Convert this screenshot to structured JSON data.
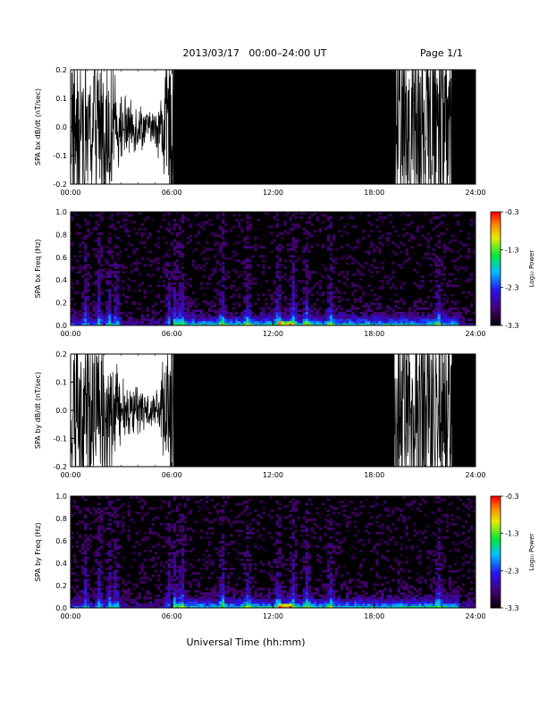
{
  "header": {
    "title": "2013/03/17   00:00–24:00 UT",
    "page": "Page 1/1"
  },
  "footer": {
    "xlabel": "Universal Time (hh:mm)"
  },
  "chart_data": [
    {
      "type": "line",
      "ylabel": "SPA bx dB/dt (nT/sec)",
      "xticks": [
        "00:00",
        "06:00",
        "12:00",
        "18:00",
        "24:00"
      ],
      "yticks": [
        "0.2",
        "0.1",
        "0.0",
        "-0.1",
        "-0.2"
      ],
      "ylim": [
        -0.2,
        0.2
      ],
      "xlim_hours": [
        0,
        24
      ],
      "series": [
        {
          "x_hours": [
            0,
            1,
            2,
            3,
            4,
            5,
            5.9,
            6.1,
            9,
            12,
            15,
            18,
            21,
            24
          ],
          "y_envelope": [
            0.2,
            0.2,
            0.2,
            0.08,
            0.06,
            0.04,
            0.2,
            0.2,
            0.2,
            0.2,
            0.2,
            0.2,
            0.2,
            0.2
          ]
        }
      ]
    },
    {
      "type": "heatmap",
      "ylabel": "SPA bx Freq (Hz)",
      "xticks": [
        "00:00",
        "06:00",
        "12:00",
        "18:00",
        "24:00"
      ],
      "yticks": [
        "1.0",
        "0.8",
        "0.6",
        "0.4",
        "0.2",
        "0.0"
      ],
      "ylim": [
        0,
        1.0
      ],
      "colorbar": {
        "label": "Log₁₀ Power",
        "ticks": [
          "-0.3",
          "-1.3",
          "-2.3",
          "-3.3"
        ],
        "range": [
          -3.3,
          -0.3
        ]
      },
      "enhancements_hours": [
        0.9,
        1.7,
        2.3,
        2.7,
        5.8,
        6.2,
        6.6,
        9.0,
        10.5,
        12.3,
        13.2,
        14.0,
        15.4,
        21.8
      ]
    },
    {
      "type": "line",
      "ylabel": "SPA by dB/dt (nT/sec)",
      "xticks": [
        "00:00",
        "06:00",
        "12:00",
        "18:00",
        "24:00"
      ],
      "yticks": [
        "0.2",
        "0.1",
        "0.0",
        "-0.1",
        "-0.2"
      ],
      "ylim": [
        -0.2,
        0.2
      ],
      "xlim_hours": [
        0,
        24
      ],
      "series": [
        {
          "x_hours": [
            0,
            1,
            2,
            3,
            4,
            5,
            5.9,
            6.1,
            9,
            12,
            15,
            18,
            21,
            24
          ],
          "y_envelope": [
            0.2,
            0.2,
            0.2,
            0.08,
            0.06,
            0.04,
            0.2,
            0.2,
            0.2,
            0.2,
            0.2,
            0.2,
            0.2,
            0.2
          ]
        }
      ]
    },
    {
      "type": "heatmap",
      "ylabel": "SPA by Freq (Hz)",
      "xticks": [
        "00:00",
        "06:00",
        "12:00",
        "18:00",
        "24:00"
      ],
      "yticks": [
        "1.0",
        "0.8",
        "0.6",
        "0.4",
        "0.2",
        "0.0"
      ],
      "ylim": [
        0,
        1.0
      ],
      "colorbar": {
        "label": "Log₁₀ Power",
        "ticks": [
          "-0.3",
          "-1.3",
          "-2.3",
          "-3.3"
        ],
        "range": [
          -3.3,
          -0.3
        ]
      },
      "enhancements_hours": [
        0.9,
        1.7,
        2.3,
        2.7,
        5.8,
        6.2,
        6.6,
        9.0,
        10.5,
        12.3,
        13.2,
        14.0,
        15.4,
        21.8
      ]
    }
  ]
}
